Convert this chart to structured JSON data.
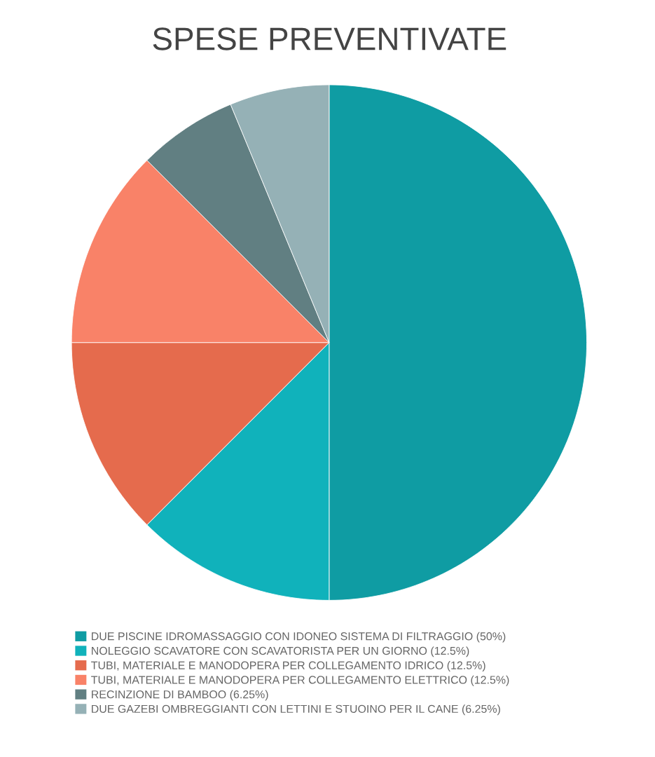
{
  "chart_data": {
    "type": "pie",
    "title": "SPESE PREVENTIVATE",
    "categories": [
      "DUE PISCINE IDROMASSAGGIO CON IDONEO SISTEMA DI FILTRAGGIO (50%)",
      "NOLEGGIO SCAVATORE CON SCAVATORISTA PER UN GIORNO (12.5%)",
      "TUBI, MATERIALE E MANODOPERA PER COLLEGAMENTO IDRICO (12.5%)",
      "TUBI, MATERIALE E MANODOPERA PER COLLEGAMENTO ELETTRICO (12.5%)",
      "RECINZIONE DI BAMBOO (6.25%)",
      "DUE GAZEBI OMBREGGIANTI CON LETTINI E STUOINO PER IL CANE (6.25%)"
    ],
    "values": [
      50,
      12.5,
      12.5,
      12.5,
      6.25,
      6.25
    ],
    "colors": [
      "#0f9ca3",
      "#10b2bb",
      "#e56b4d",
      "#f98268",
      "#617f82",
      "#95b1b6"
    ],
    "legend": "bottom"
  }
}
